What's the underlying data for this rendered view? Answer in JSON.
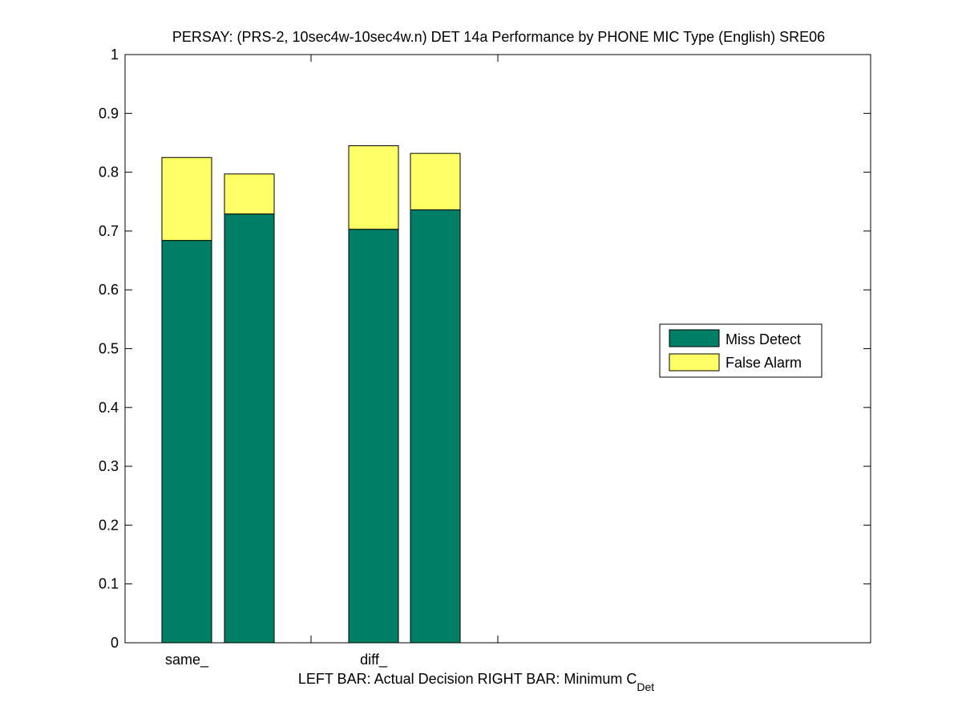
{
  "chart_data": {
    "type": "bar",
    "stacked": true,
    "title": "PERSAY: (PRS-2, 10sec4w-10sec4w.n) DET 14a Performance by PHONE MIC Type (English) SRE06",
    "xlabel_main": "LEFT BAR: Actual Decision     RIGHT BAR: Minimum C",
    "xlabel_subscript": "Det",
    "ylim": [
      0,
      1
    ],
    "yticks": [
      "0",
      "0.1",
      "0.2",
      "0.3",
      "0.4",
      "0.5",
      "0.6",
      "0.7",
      "0.8",
      "0.9",
      "1"
    ],
    "xticklabels": [
      "same_",
      "diff_"
    ],
    "bars": [
      {
        "group": "same_",
        "which": "Actual Decision",
        "miss": 0.684,
        "fa": 0.141
      },
      {
        "group": "same_",
        "which": "Minimum C_Det",
        "miss": 0.729,
        "fa": 0.068
      },
      {
        "group": "diff_",
        "which": "Actual Decision",
        "miss": 0.703,
        "fa": 0.142
      },
      {
        "group": "diff_",
        "which": "Minimum C_Det",
        "miss": 0.736,
        "fa": 0.096
      }
    ],
    "series": [
      {
        "name": "Miss Detect",
        "color": "#007F66"
      },
      {
        "name": "False Alarm",
        "color": "#FFFF66"
      }
    ],
    "legend": {
      "placement": "right-middle"
    },
    "grid": false
  }
}
